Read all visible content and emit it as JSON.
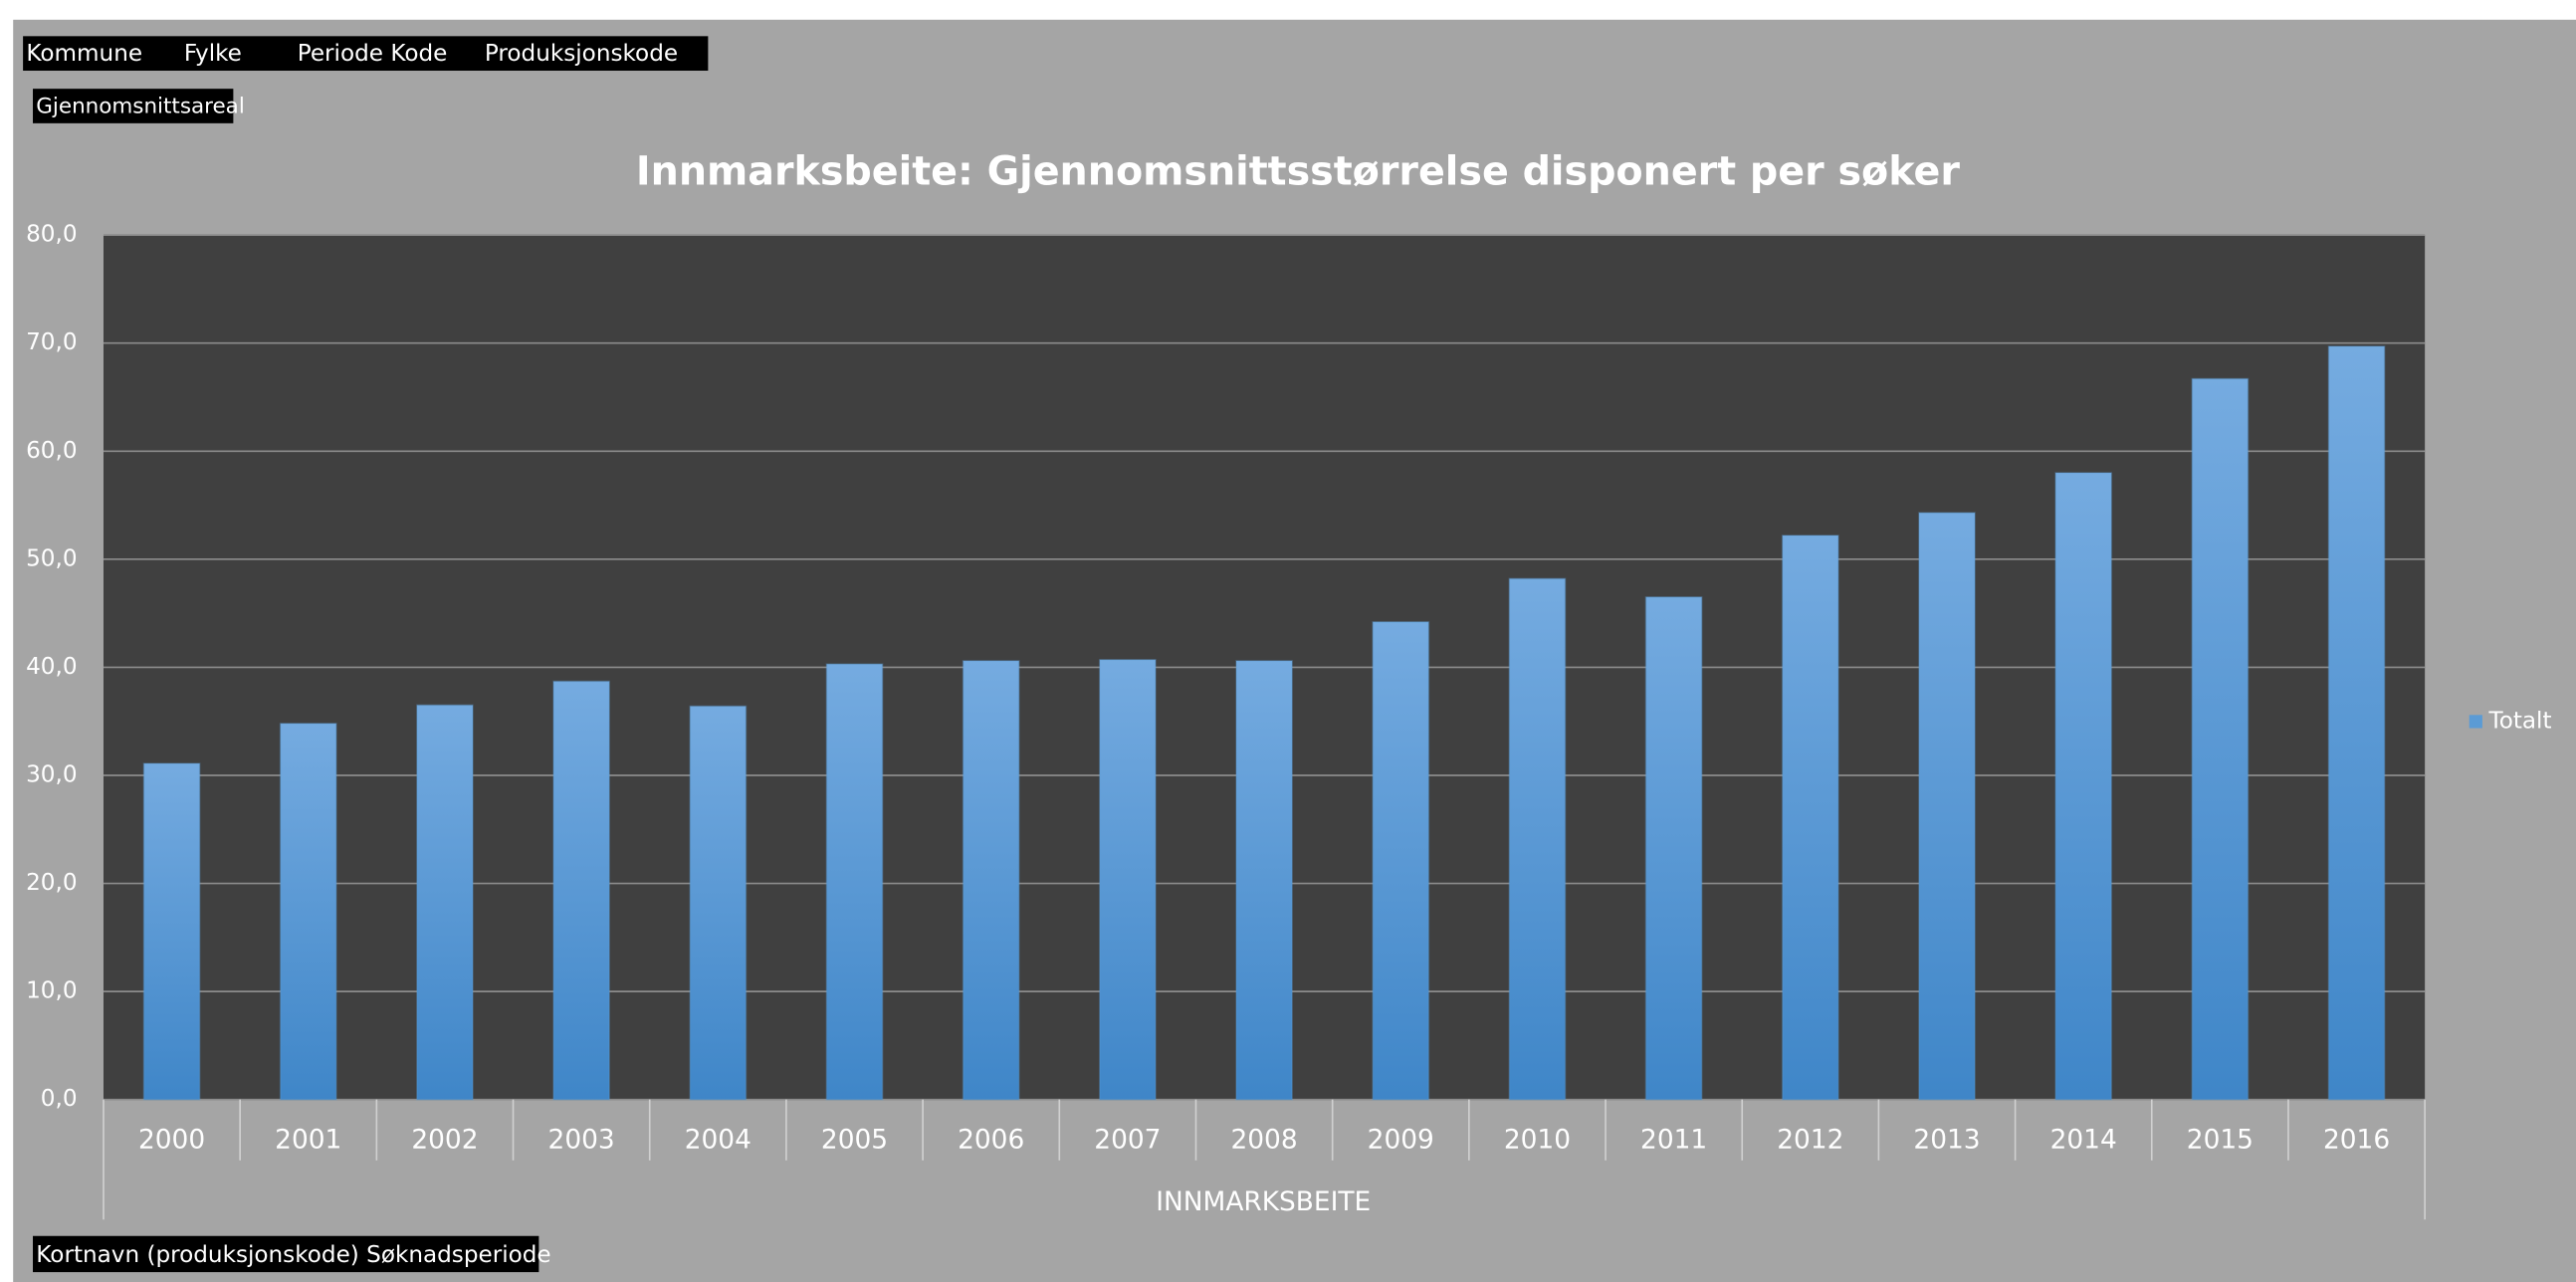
{
  "report_filters": [
    "Kommune",
    "Fylke",
    "Periode Kode",
    "Produksjonskode"
  ],
  "value_field": "Gjennomsnittsareal",
  "axis_field": "Kortnavn (produksjonskode) Søknadsperiode",
  "chart_data": {
    "type": "bar",
    "title": "Innmarksbeite: Gjennomsnittsstørrelse disponert per søker",
    "x_label": "INNMARKSBEITE",
    "categories": [
      "2000",
      "2001",
      "2002",
      "2003",
      "2004",
      "2005",
      "2006",
      "2007",
      "2008",
      "2009",
      "2010",
      "2011",
      "2012",
      "2013",
      "2014",
      "2015",
      "2016"
    ],
    "series": [
      {
        "name": "Totalt",
        "color": "#5b9bd5",
        "values": [
          31.1,
          34.8,
          36.5,
          38.7,
          36.4,
          40.3,
          40.6,
          40.7,
          40.6,
          44.2,
          48.2,
          46.5,
          52.2,
          54.3,
          58.0,
          66.7,
          69.7
        ]
      }
    ],
    "ylim": [
      0,
      80
    ],
    "yticks": [
      {
        "value": 0,
        "label": "0,0"
      },
      {
        "value": 10,
        "label": "10,0"
      },
      {
        "value": 20,
        "label": "20,0"
      },
      {
        "value": 30,
        "label": "30,0"
      },
      {
        "value": 40,
        "label": "40,0"
      },
      {
        "value": 50,
        "label": "50,0"
      },
      {
        "value": 60,
        "label": "60,0"
      },
      {
        "value": 70,
        "label": "70,0"
      },
      {
        "value": 80,
        "label": "80,0"
      }
    ],
    "grid": true,
    "legend": "right"
  }
}
